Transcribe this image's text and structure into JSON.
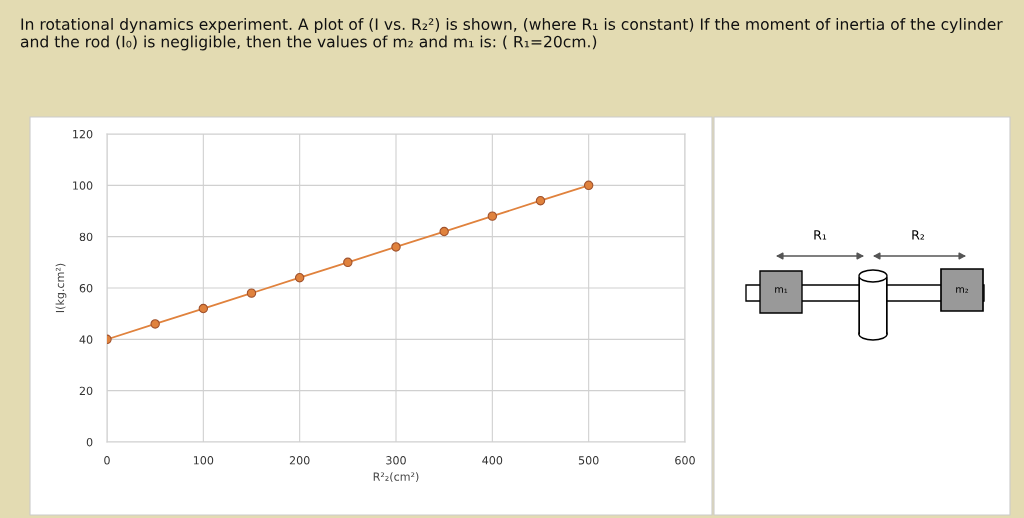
{
  "chart_data": {
    "type": "line",
    "title": "In rotational dynamics experiment. A plot of (I vs. R₂²) is shown, (where R₁ is constant) If the moment of inertia of the cylinder and the rod (I₀) is negligible, then the values of m₂ and m₁ is: ( R₁=20cm.)",
    "xlabel": "R²₂(cm²)",
    "ylabel": "I(kg.cm²)",
    "x": [
      0,
      50,
      100,
      150,
      200,
      250,
      300,
      350,
      400,
      450,
      500
    ],
    "series": [
      {
        "color": "#e0823d",
        "values": [
          40,
          46,
          52,
          58,
          64,
          70,
          76,
          82,
          88,
          94,
          100
        ]
      }
    ],
    "xlim": [
      0,
      600
    ],
    "xticks": [
      0,
      100,
      200,
      300,
      400,
      500,
      600
    ],
    "ylim": [
      0,
      120
    ],
    "yticks": [
      0,
      20,
      40,
      60,
      80,
      100,
      120
    ],
    "grid": true,
    "marker": "circle",
    "line_style": "solid",
    "annotations": [
      "R₁",
      "R₂",
      "m₁",
      "m₂"
    ]
  }
}
